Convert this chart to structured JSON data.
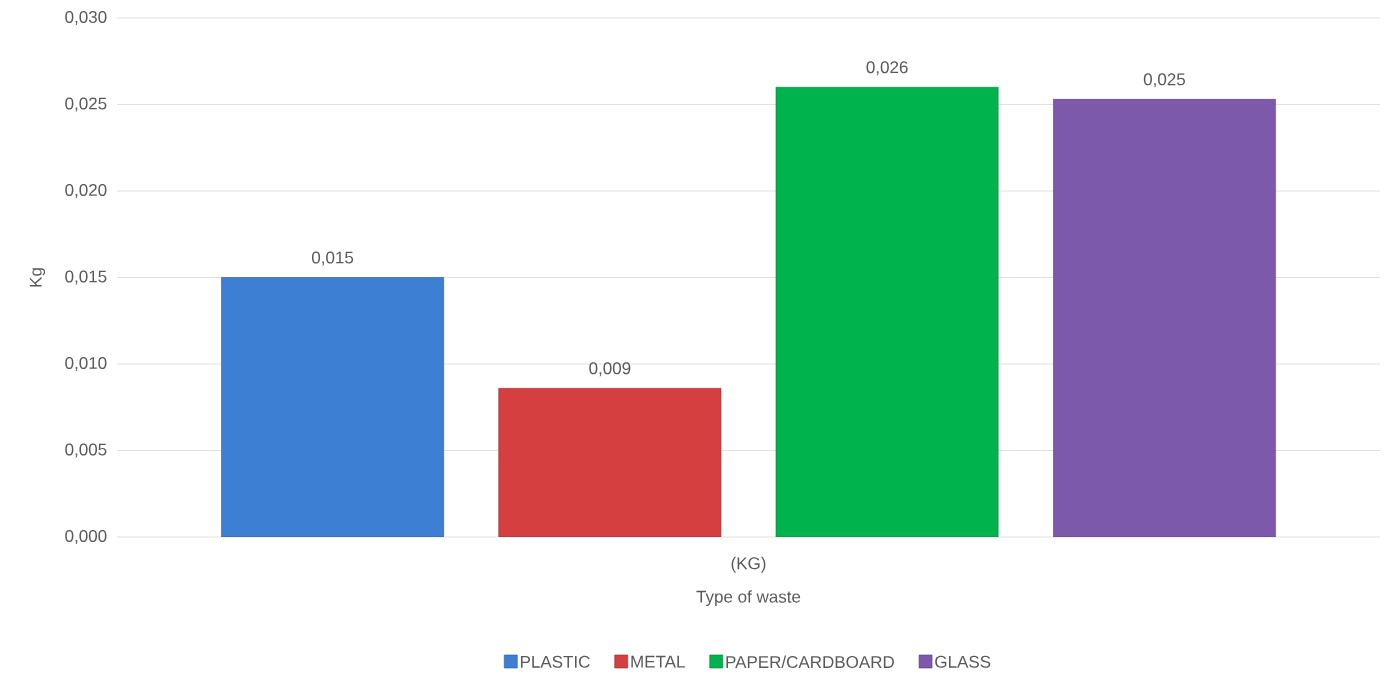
{
  "chart_data": {
    "type": "bar",
    "xlabel": "Type of waste",
    "ylabel": "Kg",
    "categories": [
      "(KG)"
    ],
    "series": [
      {
        "name": "PLASTIC",
        "color": "#3d7fd3",
        "values": [
          0.015
        ],
        "value_labels": [
          "0,015"
        ]
      },
      {
        "name": "METAL",
        "color": "#d63f3f",
        "values": [
          0.0086
        ],
        "value_labels": [
          "0,009"
        ]
      },
      {
        "name": "PAPER/CARDBOARD",
        "color": "#00b34c",
        "values": [
          0.026
        ],
        "value_labels": [
          "0,026"
        ]
      },
      {
        "name": "GLASS",
        "color": "#7d59ab",
        "values": [
          0.0253
        ],
        "value_labels": [
          "0,025"
        ]
      }
    ],
    "ylim": [
      0,
      0.03
    ],
    "yticks": [
      {
        "value": 0,
        "label": "0,000"
      },
      {
        "value": 0.005,
        "label": "0,005"
      },
      {
        "value": 0.01,
        "label": "0,010"
      },
      {
        "value": 0.015,
        "label": "0,015"
      },
      {
        "value": 0.02,
        "label": "0,020"
      },
      {
        "value": 0.025,
        "label": "0,025"
      },
      {
        "value": 0.03,
        "label": "0,030"
      }
    ],
    "grid": "y",
    "legend": "bottom"
  }
}
